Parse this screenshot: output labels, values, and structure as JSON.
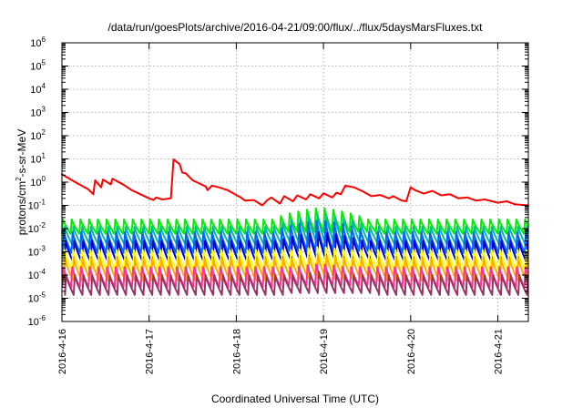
{
  "chart_data": {
    "type": "line",
    "title": "/data/run/goesPlots/archive/2016-04-21/09:00/flux/../flux/5daysMarsFluxes.txt",
    "xlabel": "Coordinated Universal Time (UTC)",
    "ylabel": "protons/cm²-s-sr-MeV",
    "ylabel_parts": {
      "base": "protons/cm",
      "sup": "2",
      "rest": "-s-sr-MeV"
    },
    "yscale": "log",
    "ylim": [
      1e-06,
      1000000.0
    ],
    "xlim_days": [
      0,
      5.35
    ],
    "x_ticks": [
      {
        "day": 0,
        "label": "2016-4-16"
      },
      {
        "day": 1,
        "label": "2016-4-17"
      },
      {
        "day": 2,
        "label": "2016-4-18"
      },
      {
        "day": 3,
        "label": "2016-4-19"
      },
      {
        "day": 4,
        "label": "2016-4-20"
      },
      {
        "day": 5,
        "label": "2016-4-21"
      }
    ],
    "y_ticks": [
      {
        "exp": -6,
        "base": "10",
        "sup": "-6"
      },
      {
        "exp": -5,
        "base": "10",
        "sup": "-5"
      },
      {
        "exp": -4,
        "base": "10",
        "sup": "-4"
      },
      {
        "exp": -3,
        "base": "10",
        "sup": "-3"
      },
      {
        "exp": -2,
        "base": "10",
        "sup": "-2"
      },
      {
        "exp": -1,
        "base": "10",
        "sup": "-1"
      },
      {
        "exp": 0,
        "base": "10",
        "sup": "0"
      },
      {
        "exp": 1,
        "base": "10",
        "sup": "1"
      },
      {
        "exp": 2,
        "base": "10",
        "sup": "2"
      },
      {
        "exp": 3,
        "base": "10",
        "sup": "3"
      },
      {
        "exp": 4,
        "base": "10",
        "sup": "4"
      },
      {
        "exp": 5,
        "base": "10",
        "sup": "5"
      },
      {
        "exp": 6,
        "base": "10",
        "sup": "6"
      }
    ],
    "grid": true,
    "legend": "none",
    "series": [
      {
        "color": "#ff0000",
        "points": [
          [
            0,
            2.2
          ],
          [
            0.1,
            1.3
          ],
          [
            0.2,
            0.8
          ],
          [
            0.3,
            0.5
          ],
          [
            0.36,
            0.3
          ],
          [
            0.38,
            1.2
          ],
          [
            0.45,
            0.6
          ],
          [
            0.47,
            1.3
          ],
          [
            0.56,
            0.8
          ],
          [
            0.58,
            1.4
          ],
          [
            0.7,
            0.8
          ],
          [
            0.8,
            0.45
          ],
          [
            0.9,
            0.3
          ],
          [
            1.0,
            0.2
          ],
          [
            1.05,
            0.17
          ],
          [
            1.08,
            0.22
          ],
          [
            1.15,
            0.18
          ],
          [
            1.25,
            0.2
          ],
          [
            1.28,
            9.5
          ],
          [
            1.35,
            6
          ],
          [
            1.38,
            2.6
          ],
          [
            1.42,
            2.4
          ],
          [
            1.5,
            1.2
          ],
          [
            1.6,
            0.8
          ],
          [
            1.65,
            0.65
          ],
          [
            1.67,
            0.45
          ],
          [
            1.72,
            0.7
          ],
          [
            1.8,
            0.6
          ],
          [
            1.9,
            0.45
          ],
          [
            2.0,
            0.28
          ],
          [
            2.05,
            0.22
          ],
          [
            2.1,
            0.16
          ],
          [
            2.2,
            0.17
          ],
          [
            2.3,
            0.1
          ],
          [
            2.35,
            0.16
          ],
          [
            2.4,
            0.22
          ],
          [
            2.5,
            0.12
          ],
          [
            2.55,
            0.25
          ],
          [
            2.65,
            0.15
          ],
          [
            2.7,
            0.27
          ],
          [
            2.8,
            0.18
          ],
          [
            2.85,
            0.3
          ],
          [
            2.95,
            0.2
          ],
          [
            3.0,
            0.33
          ],
          [
            3.1,
            0.22
          ],
          [
            3.15,
            0.35
          ],
          [
            3.2,
            0.3
          ],
          [
            3.25,
            0.7
          ],
          [
            3.35,
            0.6
          ],
          [
            3.45,
            0.4
          ],
          [
            3.55,
            0.25
          ],
          [
            3.65,
            0.28
          ],
          [
            3.75,
            0.2
          ],
          [
            3.8,
            0.25
          ],
          [
            3.9,
            0.16
          ],
          [
            3.95,
            0.15
          ],
          [
            4.0,
            0.6
          ],
          [
            4.05,
            0.45
          ],
          [
            4.15,
            0.32
          ],
          [
            4.25,
            0.42
          ],
          [
            4.35,
            0.27
          ],
          [
            4.45,
            0.3
          ],
          [
            4.55,
            0.2
          ],
          [
            4.65,
            0.22
          ],
          [
            4.75,
            0.16
          ],
          [
            4.85,
            0.18
          ],
          [
            5.0,
            0.13
          ],
          [
            5.1,
            0.15
          ],
          [
            5.2,
            0.11
          ],
          [
            5.35,
            0.1
          ]
        ]
      },
      {
        "color": "#00ee00",
        "low": 0.006,
        "high": 0.025,
        "bump_high": 0.07,
        "phase": 0.0
      },
      {
        "color": "#00bbaa",
        "low": 0.002,
        "high": 0.012,
        "bump_high": 0.035,
        "phase": 0.02
      },
      {
        "color": "#0066ff",
        "low": 0.0009,
        "high": 0.007,
        "bump_high": 0.02,
        "phase": 0.01
      },
      {
        "color": "#0000cc",
        "low": 0.00035,
        "high": 0.003,
        "bump_high": 0.006,
        "phase": 0.03
      },
      {
        "color": "#ffff00",
        "low": 0.00015,
        "high": 0.0012,
        "bump_high": 0.0012,
        "phase": 0.015
      },
      {
        "color": "#ffaa00",
        "low": 6e-05,
        "high": 0.0005,
        "bump_high": 0.0005,
        "phase": 0.025
      },
      {
        "color": "#ff3399",
        "low": 3e-05,
        "high": 0.00022,
        "bump_high": 0.00022,
        "phase": 0.005
      },
      {
        "color": "#993366",
        "low": 1.4e-05,
        "high": 0.0001,
        "bump_high": 0.0001,
        "phase": 0.035
      }
    ]
  }
}
